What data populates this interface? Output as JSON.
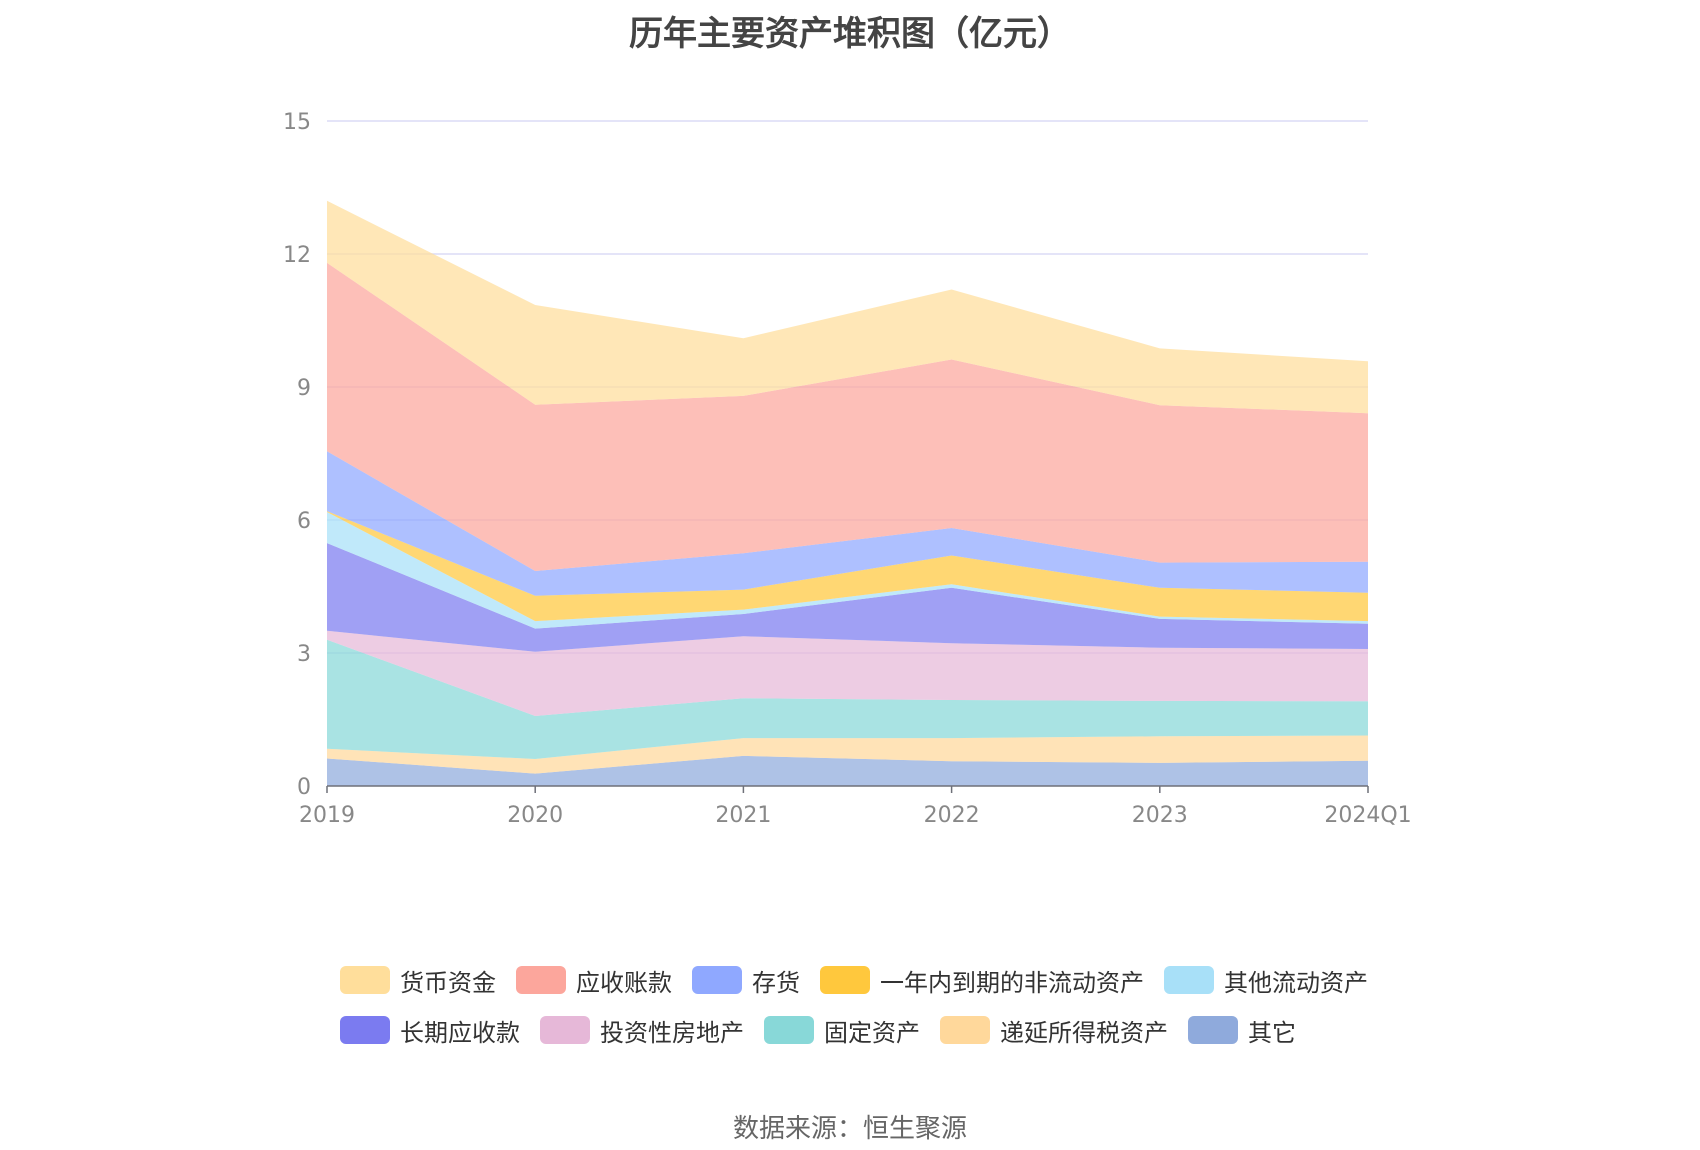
{
  "chart_data": {
    "type": "area",
    "stacked": true,
    "title": "历年主要资产堆积图（亿元）",
    "xlabel": "",
    "ylabel": "",
    "ylim": [
      0,
      15
    ],
    "yticks": [
      0,
      3,
      6,
      9,
      12,
      15
    ],
    "grid": true,
    "legend_position": "bottom",
    "categories": [
      "2019",
      "2020",
      "2021",
      "2022",
      "2023",
      "2024Q1"
    ],
    "series": [
      {
        "name": "其它",
        "color": "#8faadc",
        "values": [
          0.62,
          0.28,
          0.68,
          0.56,
          0.52,
          0.57
        ]
      },
      {
        "name": "递延所得税资产",
        "color": "#ffd89b",
        "values": [
          0.22,
          0.33,
          0.4,
          0.52,
          0.6,
          0.57
        ]
      },
      {
        "name": "固定资产",
        "color": "#88d8d8",
        "values": [
          2.46,
          0.97,
          0.9,
          0.86,
          0.8,
          0.77
        ]
      },
      {
        "name": "投资性房地产",
        "color": "#e6b8d8",
        "values": [
          0.2,
          1.45,
          1.4,
          1.28,
          1.2,
          1.18
        ]
      },
      {
        "name": "长期应收款",
        "color": "#7b7bf0",
        "values": [
          1.98,
          0.52,
          0.5,
          1.25,
          0.65,
          0.57
        ]
      },
      {
        "name": "其他流动资产",
        "color": "#a8e0f8",
        "values": [
          0.7,
          0.17,
          0.1,
          0.08,
          0.05,
          0.06
        ]
      },
      {
        "name": "一年内到期的非流动资产",
        "color": "#ffc83d",
        "values": [
          0.02,
          0.57,
          0.45,
          0.65,
          0.65,
          0.64
        ]
      },
      {
        "name": "存货",
        "color": "#8fa8ff",
        "values": [
          1.35,
          0.56,
          0.82,
          0.62,
          0.57,
          0.7
        ]
      },
      {
        "name": "应收账款",
        "color": "#fca69c",
        "values": [
          4.25,
          3.75,
          3.55,
          3.8,
          3.55,
          3.35
        ]
      },
      {
        "name": "货币资金",
        "color": "#ffde9b",
        "values": [
          1.4,
          2.25,
          1.3,
          1.58,
          1.28,
          1.17
        ]
      }
    ]
  },
  "legend": {
    "row1": [
      "货币资金",
      "应收账款",
      "存货",
      "一年内到期的非流动资产",
      "其他流动资产"
    ],
    "row2": [
      "长期应收款",
      "投资性房地产",
      "固定资产",
      "递延所得税资产",
      "其它"
    ]
  },
  "source": "数据来源：恒生聚源"
}
